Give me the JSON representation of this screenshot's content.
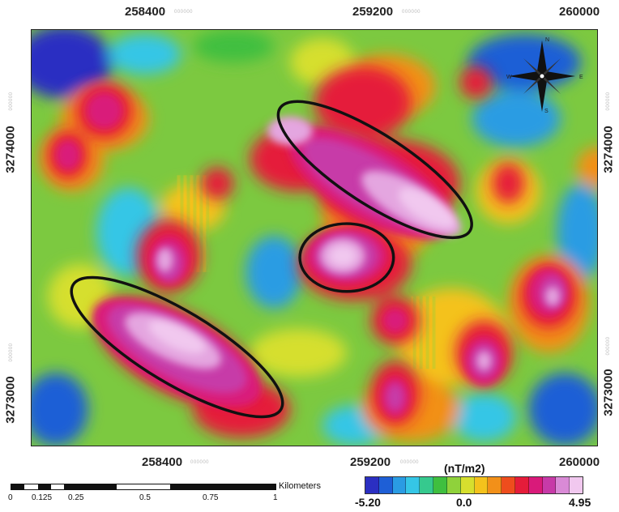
{
  "map": {
    "top_ticks": [
      "258400",
      "259200",
      "260000"
    ],
    "bottom_ticks": [
      "258400",
      "259200",
      "260000"
    ],
    "left_ticks": [
      "3274000",
      "3273000"
    ],
    "right_ticks": [
      "3274000",
      "3273000"
    ],
    "faint_suffix": "000000",
    "compass": {
      "n": "N",
      "s": "S",
      "e": "E",
      "w": "W"
    }
  },
  "scale_bar": {
    "ticks": [
      "0",
      "0.125",
      "0.25",
      "0.5",
      "0.75",
      "1"
    ],
    "unit": "Kilometers"
  },
  "legend": {
    "title": "(nT/m2)",
    "min": "-5.20",
    "mid": "0.0",
    "max": "4.95",
    "colors": [
      "#2b2fc2",
      "#1e5fd6",
      "#2a9ce3",
      "#35c6e6",
      "#36c98e",
      "#3fbf3f",
      "#8fd23b",
      "#d6df2e",
      "#f4c21c",
      "#f29019",
      "#ee4d1d",
      "#e51c3a",
      "#d91a7a",
      "#c73aa8",
      "#d98ad6",
      "#f1c8ef"
    ]
  }
}
